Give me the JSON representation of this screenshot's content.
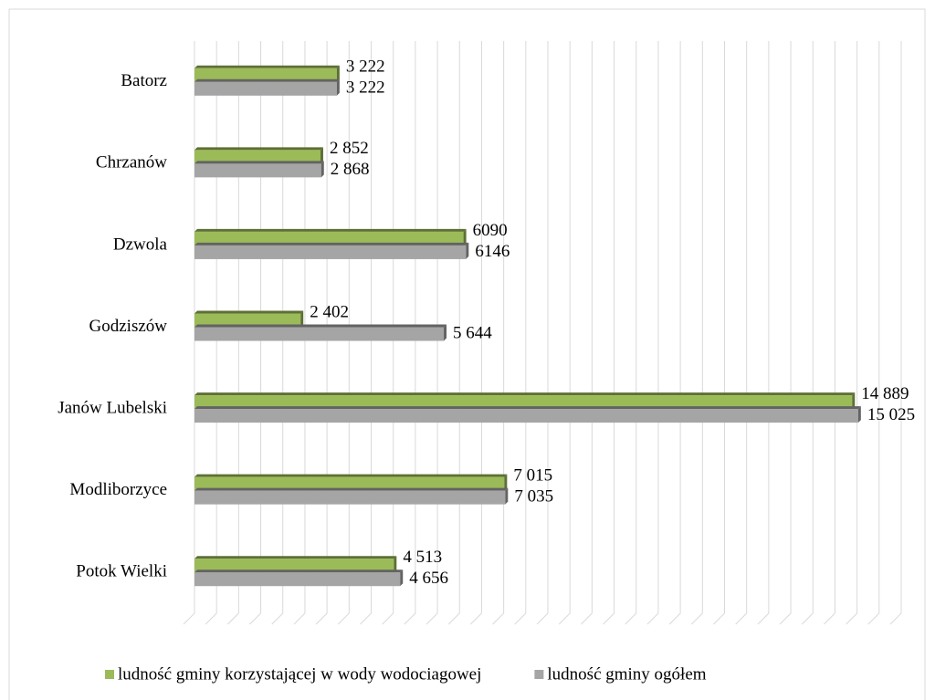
{
  "chart_data": {
    "type": "bar",
    "orientation": "horizontal",
    "categories": [
      "Batorz",
      "Chrzanów",
      "Dzwola",
      "Godziszów",
      "Janów Lubelski",
      "Modliborzyce",
      "Potok Wielki"
    ],
    "series": [
      {
        "name": "ludność gminy korzystającej w wody wodociagowej",
        "color": "#9bbb59",
        "values": [
          3222,
          2852,
          6090,
          2402,
          14889,
          7015,
          4513
        ],
        "value_labels": [
          "3 222",
          "2 852",
          "6090",
          "2 402",
          "14 889",
          "7 015",
          "4 513"
        ]
      },
      {
        "name": "ludność gminy ogółem",
        "color": "#a5a5a5",
        "values": [
          3222,
          2868,
          6146,
          5644,
          15025,
          7035,
          4656
        ],
        "value_labels": [
          "3 222",
          "2 868",
          "6146",
          "5 644",
          "15 025",
          "7 035",
          "4 656"
        ]
      }
    ],
    "xlim": [
      0,
      16000
    ],
    "xticks": [
      0,
      500,
      1000,
      1500,
      2000,
      2500,
      3000,
      3500,
      4000,
      4500,
      5000,
      5500,
      6000,
      6500,
      7000,
      7500,
      8000,
      8500,
      9000,
      9500,
      10000,
      10500,
      11000,
      11500,
      12000,
      12500,
      13000,
      13500,
      14000,
      14500,
      15000,
      15500,
      16000
    ],
    "grid": true,
    "legend": "bottom"
  }
}
